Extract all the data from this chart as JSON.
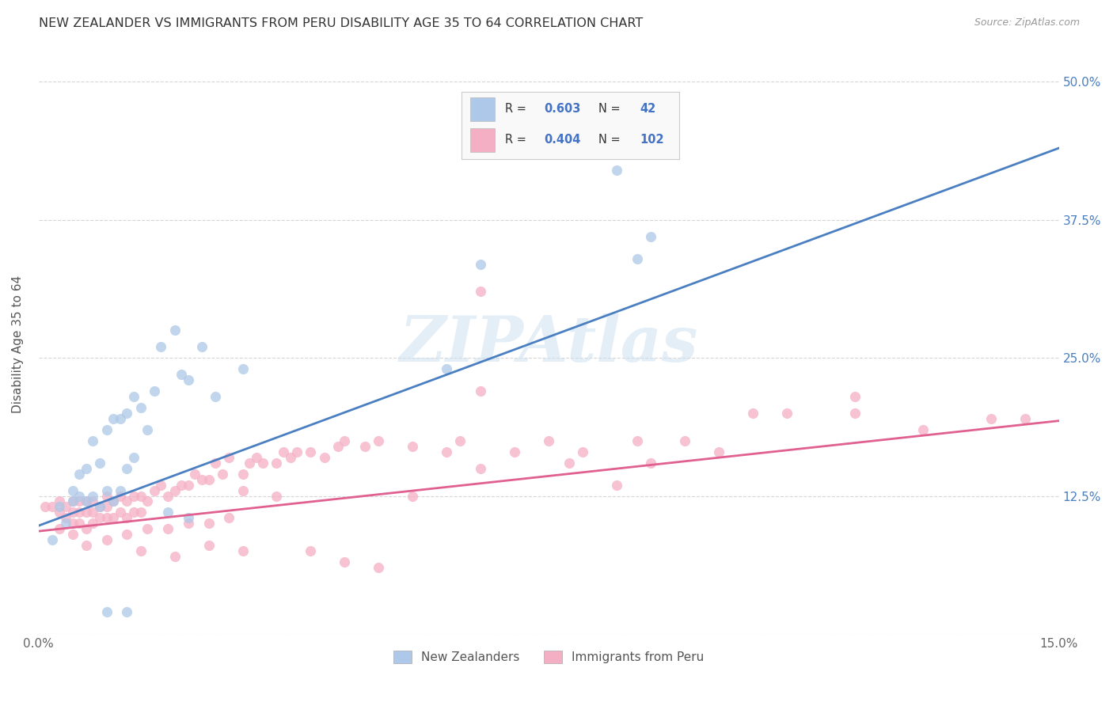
{
  "title": "NEW ZEALANDER VS IMMIGRANTS FROM PERU DISABILITY AGE 35 TO 64 CORRELATION CHART",
  "source": "Source: ZipAtlas.com",
  "ylabel": "Disability Age 35 to 64",
  "xmin": 0.0,
  "xmax": 0.15,
  "ymin": 0.0,
  "ymax": 0.525,
  "xtick_positions": [
    0.0,
    0.03,
    0.06,
    0.09,
    0.12,
    0.15
  ],
  "xtick_labels": [
    "0.0%",
    "",
    "",
    "",
    "",
    "15.0%"
  ],
  "ytick_positions": [
    0.0,
    0.125,
    0.25,
    0.375,
    0.5
  ],
  "ytick_labels_right": [
    "",
    "12.5%",
    "25.0%",
    "37.5%",
    "50.0%"
  ],
  "nz_R": "0.603",
  "nz_N": "42",
  "peru_R": "0.404",
  "peru_N": "102",
  "nz_color": "#adc8e8",
  "peru_color": "#f5afc5",
  "nz_line_color": "#4a7fc1",
  "peru_line_color": "#e06090",
  "legend_text_color": "#4472c4",
  "background_color": "#ffffff",
  "grid_color": "#cccccc",
  "watermark_color": "#cde0f0",
  "nz_line_x0": 0.0,
  "nz_line_y0": 0.098,
  "nz_line_x1": 0.15,
  "nz_line_y1": 0.44,
  "peru_line_x0": 0.0,
  "peru_line_y0": 0.093,
  "peru_line_x1": 0.15,
  "peru_line_y1": 0.193,
  "nz_scatter_x": [
    0.002,
    0.003,
    0.004,
    0.005,
    0.005,
    0.006,
    0.006,
    0.007,
    0.007,
    0.008,
    0.008,
    0.009,
    0.009,
    0.01,
    0.01,
    0.011,
    0.011,
    0.012,
    0.012,
    0.013,
    0.013,
    0.014,
    0.014,
    0.015,
    0.016,
    0.017,
    0.018,
    0.02,
    0.021,
    0.022,
    0.024,
    0.026,
    0.03,
    0.01,
    0.013,
    0.019,
    0.06,
    0.065,
    0.085,
    0.09,
    0.088,
    0.022
  ],
  "nz_scatter_y": [
    0.085,
    0.115,
    0.1,
    0.12,
    0.13,
    0.125,
    0.145,
    0.12,
    0.15,
    0.125,
    0.175,
    0.115,
    0.155,
    0.13,
    0.185,
    0.12,
    0.195,
    0.13,
    0.195,
    0.15,
    0.2,
    0.16,
    0.215,
    0.205,
    0.185,
    0.22,
    0.26,
    0.275,
    0.235,
    0.23,
    0.26,
    0.215,
    0.24,
    0.02,
    0.02,
    0.11,
    0.24,
    0.335,
    0.42,
    0.36,
    0.34,
    0.105
  ],
  "peru_scatter_x": [
    0.001,
    0.002,
    0.003,
    0.003,
    0.004,
    0.004,
    0.005,
    0.005,
    0.005,
    0.006,
    0.006,
    0.006,
    0.007,
    0.007,
    0.007,
    0.008,
    0.008,
    0.008,
    0.009,
    0.009,
    0.01,
    0.01,
    0.01,
    0.011,
    0.011,
    0.012,
    0.012,
    0.013,
    0.013,
    0.014,
    0.014,
    0.015,
    0.015,
    0.016,
    0.017,
    0.018,
    0.019,
    0.02,
    0.021,
    0.022,
    0.023,
    0.024,
    0.025,
    0.026,
    0.027,
    0.028,
    0.03,
    0.031,
    0.032,
    0.033,
    0.035,
    0.036,
    0.037,
    0.038,
    0.04,
    0.042,
    0.044,
    0.045,
    0.048,
    0.05,
    0.055,
    0.06,
    0.062,
    0.065,
    0.07,
    0.075,
    0.078,
    0.08,
    0.085,
    0.088,
    0.09,
    0.095,
    0.1,
    0.105,
    0.11,
    0.12,
    0.13,
    0.14,
    0.145,
    0.003,
    0.005,
    0.007,
    0.01,
    0.013,
    0.016,
    0.019,
    0.022,
    0.025,
    0.028,
    0.015,
    0.02,
    0.025,
    0.03,
    0.04,
    0.045,
    0.05,
    0.03,
    0.035,
    0.065,
    0.055,
    0.065,
    0.12
  ],
  "peru_scatter_y": [
    0.115,
    0.115,
    0.11,
    0.12,
    0.105,
    0.115,
    0.1,
    0.11,
    0.12,
    0.1,
    0.11,
    0.12,
    0.095,
    0.11,
    0.12,
    0.1,
    0.11,
    0.12,
    0.105,
    0.115,
    0.105,
    0.115,
    0.125,
    0.105,
    0.12,
    0.11,
    0.125,
    0.105,
    0.12,
    0.11,
    0.125,
    0.11,
    0.125,
    0.12,
    0.13,
    0.135,
    0.125,
    0.13,
    0.135,
    0.135,
    0.145,
    0.14,
    0.14,
    0.155,
    0.145,
    0.16,
    0.145,
    0.155,
    0.16,
    0.155,
    0.155,
    0.165,
    0.16,
    0.165,
    0.165,
    0.16,
    0.17,
    0.175,
    0.17,
    0.175,
    0.17,
    0.165,
    0.175,
    0.15,
    0.165,
    0.175,
    0.155,
    0.165,
    0.135,
    0.175,
    0.155,
    0.175,
    0.165,
    0.2,
    0.2,
    0.2,
    0.185,
    0.195,
    0.195,
    0.095,
    0.09,
    0.08,
    0.085,
    0.09,
    0.095,
    0.095,
    0.1,
    0.1,
    0.105,
    0.075,
    0.07,
    0.08,
    0.075,
    0.075,
    0.065,
    0.06,
    0.13,
    0.125,
    0.31,
    0.125,
    0.22,
    0.215
  ]
}
